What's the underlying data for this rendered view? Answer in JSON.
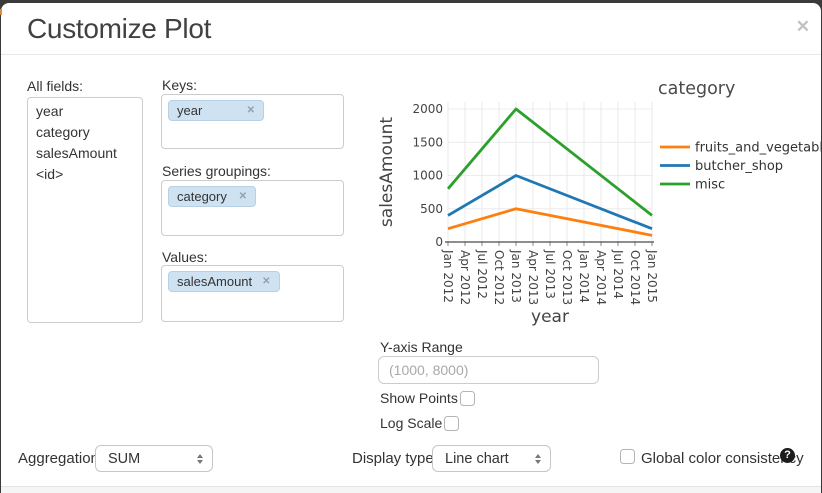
{
  "dialog": {
    "title": "Customize Plot"
  },
  "icons": {
    "close": "✕",
    "remove": "✕",
    "help": "?"
  },
  "fields_panel": {
    "label": "All fields:",
    "items": [
      "year",
      "category",
      "salesAmount",
      "<id>"
    ]
  },
  "mapping_panel": {
    "keys": {
      "label": "Keys:",
      "tags": [
        {
          "text": "year"
        }
      ]
    },
    "series_groupings": {
      "label": "Series groupings:",
      "tags": [
        {
          "text": "category"
        }
      ]
    },
    "values": {
      "label": "Values:",
      "tags": [
        {
          "text": "salesAmount"
        }
      ]
    }
  },
  "chart_data": {
    "type": "line",
    "legend_title": "category",
    "xlabel": "year",
    "ylabel": "salesAmount",
    "x_ticks": [
      "Jan 2012",
      "Apr 2012",
      "Jul 2012",
      "Oct 2012",
      "Jan 2013",
      "Apr 2013",
      "Jul 2013",
      "Oct 2013",
      "Jan 2014",
      "Apr 2014",
      "Jul 2014",
      "Oct 2014",
      "Jan 2015"
    ],
    "y_ticks": [
      0,
      500,
      1000,
      1500,
      2000
    ],
    "ylim": [
      0,
      2000
    ],
    "grid": true,
    "legend_position": "right",
    "series": [
      {
        "name": "fruits_and_vegetable",
        "color": "#ff7f0e",
        "x": [
          "Jan 2012",
          "Jan 2013",
          "Jan 2015"
        ],
        "y": [
          200,
          500,
          100
        ]
      },
      {
        "name": "butcher_shop",
        "color": "#1f77b4",
        "x": [
          "Jan 2012",
          "Jan 2013",
          "Jan 2015"
        ],
        "y": [
          400,
          1000,
          200
        ]
      },
      {
        "name": "misc",
        "color": "#2ca02c",
        "x": [
          "Jan 2012",
          "Jan 2013",
          "Jan 2015"
        ],
        "y": [
          800,
          2000,
          400
        ]
      }
    ]
  },
  "options": {
    "y_axis_range": {
      "label": "Y-axis Range",
      "placeholder": "(1000, 8000)",
      "value": ""
    },
    "show_points": {
      "label": "Show Points",
      "checked": false
    },
    "log_scale": {
      "label": "Log Scale",
      "checked": false
    }
  },
  "footer_controls": {
    "aggregation": {
      "label": "Aggregation:",
      "selected": "SUM"
    },
    "display_type": {
      "label": "Display type:",
      "selected": "Line chart"
    },
    "global_color": {
      "label": "Global color consistency",
      "checked": false
    }
  },
  "colors": {
    "tag_bg": "#cfe2f2",
    "backdrop": "#3a3a3a",
    "series": [
      "#ff7f0e",
      "#1f77b4",
      "#2ca02c"
    ]
  }
}
